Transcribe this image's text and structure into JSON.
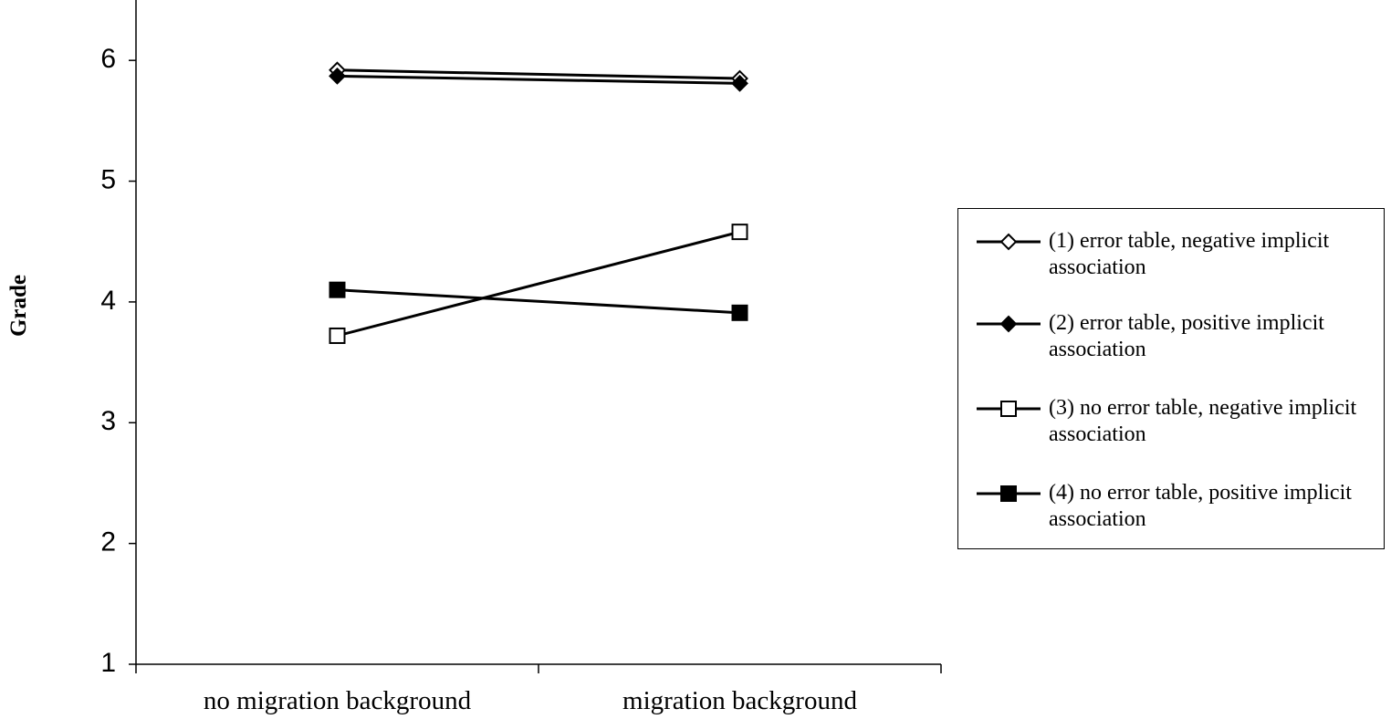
{
  "chart_data": {
    "type": "line",
    "y_label": "Grade",
    "categories": [
      "no migration background",
      "migration background"
    ],
    "series": [
      {
        "name": "(1) error table, negative implicit association",
        "color": "#000000",
        "marker": "diamond",
        "marker_fill": "#ffffff",
        "values": [
          5.92,
          5.85
        ]
      },
      {
        "name": "(2) error table, positive implicit association",
        "color": "#000000",
        "marker": "diamond",
        "marker_fill": "#000000",
        "values": [
          5.87,
          5.81
        ]
      },
      {
        "name": "(3) no error table, negative implicit association",
        "color": "#000000",
        "marker": "square",
        "marker_fill": "#ffffff",
        "values": [
          3.72,
          4.58
        ]
      },
      {
        "name": "(4) no error table, positive implicit association",
        "color": "#000000",
        "marker": "square",
        "marker_fill": "#000000",
        "values": [
          4.1,
          3.91
        ]
      }
    ],
    "ylim": [
      1,
      6.5
    ],
    "yticks": [
      1,
      2,
      3,
      4,
      5,
      6
    ],
    "grid": false,
    "legend": "right"
  }
}
